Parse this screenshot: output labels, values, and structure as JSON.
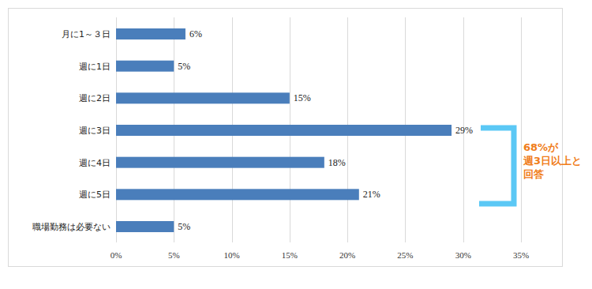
{
  "chart_data": {
    "type": "bar",
    "orientation": "horizontal",
    "categories": [
      "月に1～３日",
      "週に1日",
      "週に2日",
      "週に3日",
      "週に4日",
      "週に5日",
      "職場勤務は必要ない"
    ],
    "values": [
      6,
      5,
      15,
      29,
      18,
      21,
      5
    ],
    "value_labels": [
      "6%",
      "5%",
      "15%",
      "29%",
      "18%",
      "21%",
      "5%"
    ],
    "data_labels": true,
    "color": "#4a7ebb",
    "xlim": [
      0,
      35
    ],
    "xticks": [
      {
        "value": 0,
        "label": "0%"
      },
      {
        "value": 5,
        "label": "5%"
      },
      {
        "value": 10,
        "label": "10%"
      },
      {
        "value": 15,
        "label": "15%"
      },
      {
        "value": 20,
        "label": "20%"
      },
      {
        "value": 25,
        "label": "25%"
      },
      {
        "value": 30,
        "label": "30%"
      },
      {
        "value": 35,
        "label": "35%"
      }
    ],
    "grid": true,
    "annotations": [
      "68%が",
      "週3日以上と",
      "回答"
    ]
  }
}
